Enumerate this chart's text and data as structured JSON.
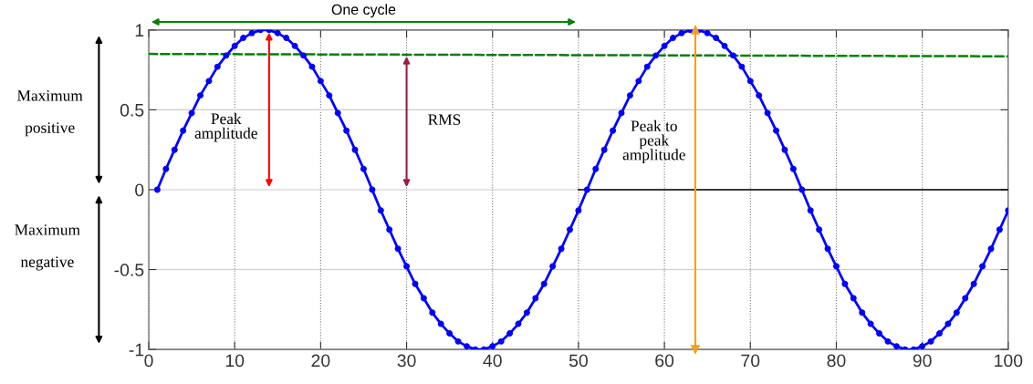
{
  "chart_data": {
    "type": "line",
    "x": [
      1,
      2,
      3,
      4,
      5,
      6,
      7,
      8,
      9,
      10,
      11,
      12,
      13,
      14,
      15,
      16,
      17,
      18,
      19,
      20,
      21,
      22,
      23,
      24,
      25,
      26,
      27,
      28,
      29,
      30,
      31,
      32,
      33,
      34,
      35,
      36,
      37,
      38,
      39,
      40,
      41,
      42,
      43,
      44,
      45,
      46,
      47,
      48,
      49,
      50,
      51,
      52,
      53,
      54,
      55,
      56,
      57,
      58,
      59,
      60,
      61,
      62,
      63,
      64,
      65,
      66,
      67,
      68,
      69,
      70,
      71,
      72,
      73,
      74,
      75,
      76,
      77,
      78,
      79,
      80,
      81,
      82,
      83,
      84,
      85,
      86,
      87,
      88,
      89,
      90,
      91,
      92,
      93,
      94,
      95,
      96,
      97,
      98,
      99,
      100
    ],
    "series": [
      {
        "color": "#0000ff",
        "marker": "circle",
        "line_style": "solid",
        "values": [
          0,
          0.13,
          0.25,
          0.37,
          0.48,
          0.59,
          0.68,
          0.77,
          0.84,
          0.9,
          0.95,
          0.98,
          1,
          1,
          0.98,
          0.95,
          0.9,
          0.84,
          0.77,
          0.68,
          0.59,
          0.48,
          0.37,
          0.25,
          0.13,
          0,
          -0.13,
          -0.25,
          -0.37,
          -0.48,
          -0.59,
          -0.68,
          -0.77,
          -0.84,
          -0.9,
          -0.95,
          -0.98,
          -1,
          -1,
          -0.98,
          -0.95,
          -0.9,
          -0.84,
          -0.77,
          -0.68,
          -0.59,
          -0.48,
          -0.37,
          -0.25,
          -0.13,
          0,
          0.13,
          0.25,
          0.37,
          0.48,
          0.59,
          0.68,
          0.77,
          0.84,
          0.9,
          0.95,
          0.98,
          1,
          1,
          0.98,
          0.95,
          0.9,
          0.84,
          0.77,
          0.68,
          0.59,
          0.48,
          0.37,
          0.25,
          0.13,
          0,
          -0.13,
          -0.25,
          -0.37,
          -0.48,
          -0.59,
          -0.68,
          -0.77,
          -0.84,
          -0.9,
          -0.95,
          -0.98,
          -1,
          -1,
          -0.98,
          -0.95,
          -0.9,
          -0.84,
          -0.77,
          -0.68,
          -0.59,
          -0.48,
          -0.37,
          -0.25,
          -0.13
        ]
      },
      {
        "color": "#008000",
        "line_style": "dashed",
        "x": [
          0,
          100
        ],
        "values": [
          0.85,
          0.835
        ]
      },
      {
        "color": "#000000",
        "line_style": "solid",
        "x": [
          50,
          100
        ],
        "values": [
          0,
          0
        ]
      }
    ],
    "xlim": [
      0,
      100
    ],
    "ylim": [
      -1,
      1
    ],
    "xticks": [
      0,
      10,
      20,
      30,
      40,
      50,
      60,
      70,
      80,
      90,
      100
    ],
    "yticks": [
      -1,
      {
        "value": -0.5,
        "label": "-0.5"
      },
      0,
      0.5,
      1
    ],
    "grid": true,
    "ref_lines": [
      {
        "axis": "x",
        "value": 63.6,
        "label": "Peak to\npeak\namplitude",
        "color": "#f0a020"
      }
    ],
    "annotations": [
      "One cycle",
      "Peak\namplitude",
      "RMS",
      "Maximum\n\npositive",
      "Maximum\n\nnegative"
    ]
  }
}
